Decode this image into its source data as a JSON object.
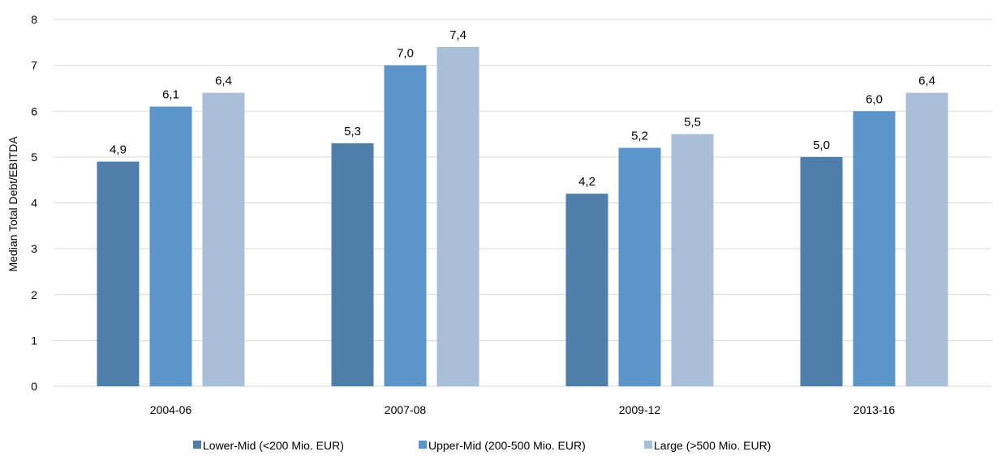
{
  "chart_data": {
    "type": "bar",
    "categories": [
      "2004-06",
      "2007-08",
      "2009-12",
      "2013-16"
    ],
    "series": [
      {
        "name": "Lower-Mid (<200 Mio. EUR)",
        "color": "#4e7faa",
        "values": [
          4.9,
          5.3,
          4.2,
          5.0
        ],
        "labels": [
          "4,9",
          "5,3",
          "4,2",
          "5,0"
        ]
      },
      {
        "name": "Upper-Mid (200-500 Mio. EUR)",
        "color": "#5b95c9",
        "values": [
          6.1,
          7.0,
          5.2,
          6.0
        ],
        "labels": [
          "6,1",
          "7,0",
          "5,2",
          "6,0"
        ]
      },
      {
        "name": "Large (>500 Mio. EUR)",
        "color": "#a9bfd9",
        "values": [
          6.4,
          7.4,
          5.5,
          6.4
        ],
        "labels": [
          "6,4",
          "7,4",
          "5,5",
          "6,4"
        ]
      }
    ],
    "title": "",
    "xlabel": "",
    "ylabel": "Median Total Debt/EBITDA",
    "ylim": [
      0,
      8
    ],
    "yticks": [
      "0",
      "1",
      "2",
      "3",
      "4",
      "5",
      "6",
      "7",
      "8"
    ],
    "grid": true,
    "legend": "bottom"
  }
}
